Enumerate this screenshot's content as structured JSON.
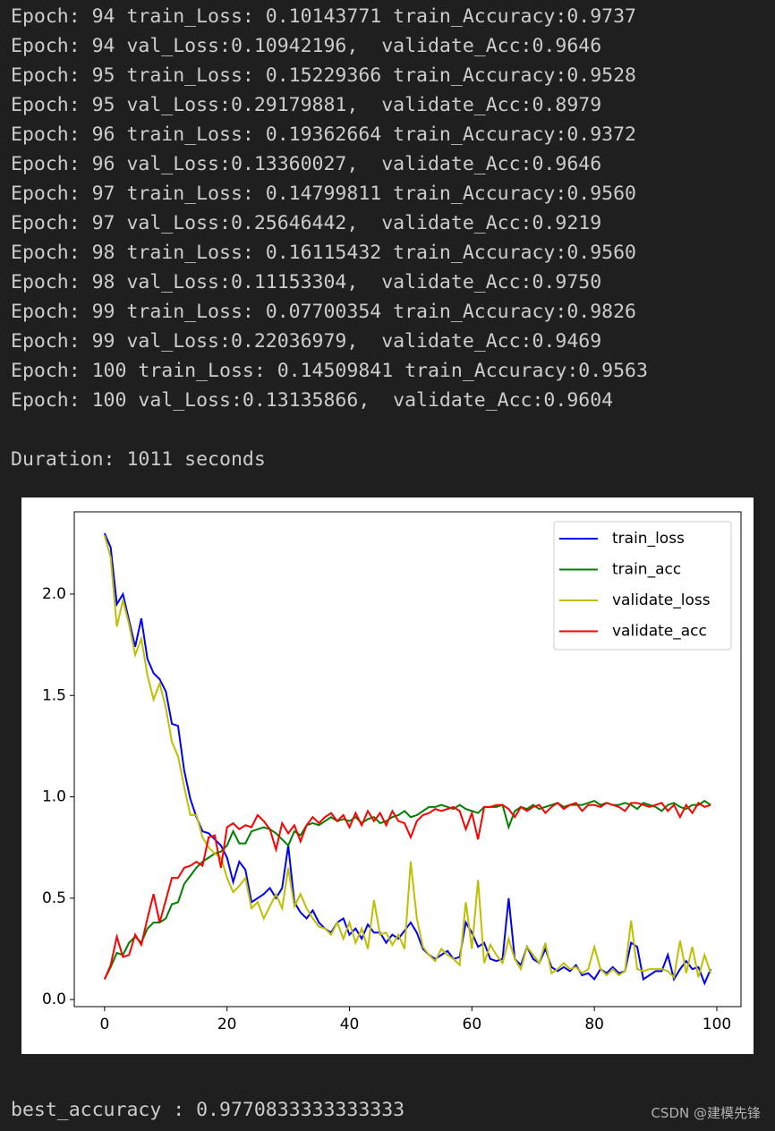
{
  "log_lines": [
    "Epoch: 94 train_Loss: 0.10143771 train_Accuracy:0.9737",
    "Epoch: 94 val_Loss:0.10942196,  validate_Acc:0.9646",
    "Epoch: 95 train_Loss: 0.15229366 train_Accuracy:0.9528",
    "Epoch: 95 val_Loss:0.29179881,  validate_Acc:0.8979",
    "Epoch: 96 train_Loss: 0.19362664 train_Accuracy:0.9372",
    "Epoch: 96 val_Loss:0.13360027,  validate_Acc:0.9646",
    "Epoch: 97 train_Loss: 0.14799811 train_Accuracy:0.9560",
    "Epoch: 97 val_Loss:0.25646442,  validate_Acc:0.9219",
    "Epoch: 98 train_Loss: 0.16115432 train_Accuracy:0.9560",
    "Epoch: 98 val_Loss:0.11153304,  validate_Acc:0.9750",
    "Epoch: 99 train_Loss: 0.07700354 train_Accuracy:0.9826",
    "Epoch: 99 val_Loss:0.22036979,  validate_Acc:0.9469",
    "Epoch: 100 train_Loss: 0.14509841 train_Accuracy:0.9563",
    "Epoch: 100 val_Loss:0.13135866,  validate_Acc:0.9604"
  ],
  "duration": "Duration: 1011 seconds",
  "chart_data": {
    "type": "line",
    "x": [
      0,
      1,
      2,
      3,
      4,
      5,
      6,
      7,
      8,
      9,
      10,
      11,
      12,
      13,
      14,
      15,
      16,
      17,
      18,
      19,
      20,
      21,
      22,
      23,
      24,
      25,
      26,
      27,
      28,
      29,
      30,
      31,
      32,
      33,
      34,
      35,
      36,
      37,
      38,
      39,
      40,
      41,
      42,
      43,
      44,
      45,
      46,
      47,
      48,
      49,
      50,
      51,
      52,
      53,
      54,
      55,
      56,
      57,
      58,
      59,
      60,
      61,
      62,
      63,
      64,
      65,
      66,
      67,
      68,
      69,
      70,
      71,
      72,
      73,
      74,
      75,
      76,
      77,
      78,
      79,
      80,
      81,
      82,
      83,
      84,
      85,
      86,
      87,
      88,
      89,
      90,
      91,
      92,
      93,
      94,
      95,
      96,
      97,
      98,
      99
    ],
    "series": [
      {
        "name": "train_loss",
        "color": "#0000ff",
        "values": [
          2.3,
          2.23,
          1.95,
          2.0,
          1.87,
          1.74,
          1.88,
          1.68,
          1.61,
          1.58,
          1.52,
          1.36,
          1.35,
          1.13,
          0.99,
          0.9,
          0.83,
          0.82,
          0.79,
          0.76,
          0.7,
          0.58,
          0.68,
          0.64,
          0.48,
          0.5,
          0.52,
          0.55,
          0.5,
          0.55,
          0.76,
          0.48,
          0.43,
          0.4,
          0.44,
          0.38,
          0.35,
          0.33,
          0.38,
          0.4,
          0.32,
          0.35,
          0.3,
          0.37,
          0.33,
          0.33,
          0.28,
          0.32,
          0.3,
          0.34,
          0.38,
          0.33,
          0.25,
          0.22,
          0.2,
          0.22,
          0.24,
          0.2,
          0.21,
          0.38,
          0.33,
          0.26,
          0.28,
          0.2,
          0.19,
          0.2,
          0.5,
          0.2,
          0.17,
          0.26,
          0.2,
          0.18,
          0.25,
          0.16,
          0.14,
          0.16,
          0.14,
          0.17,
          0.12,
          0.13,
          0.1,
          0.15,
          0.13,
          0.16,
          0.13,
          0.14,
          0.28,
          0.26,
          0.1,
          0.12,
          0.14,
          0.14,
          0.22,
          0.1,
          0.15,
          0.19,
          0.15,
          0.16,
          0.08,
          0.15
        ]
      },
      {
        "name": "train_acc",
        "color": "#008000",
        "values": [
          0.1,
          0.16,
          0.23,
          0.22,
          0.28,
          0.31,
          0.28,
          0.35,
          0.38,
          0.38,
          0.4,
          0.47,
          0.48,
          0.57,
          0.61,
          0.65,
          0.68,
          0.7,
          0.72,
          0.73,
          0.76,
          0.83,
          0.77,
          0.77,
          0.83,
          0.84,
          0.85,
          0.84,
          0.82,
          0.79,
          0.76,
          0.83,
          0.81,
          0.86,
          0.87,
          0.86,
          0.88,
          0.9,
          0.88,
          0.89,
          0.88,
          0.9,
          0.87,
          0.89,
          0.9,
          0.87,
          0.88,
          0.9,
          0.91,
          0.93,
          0.9,
          0.91,
          0.93,
          0.95,
          0.95,
          0.96,
          0.95,
          0.94,
          0.96,
          0.94,
          0.93,
          0.92,
          0.95,
          0.95,
          0.95,
          0.96,
          0.85,
          0.93,
          0.95,
          0.94,
          0.96,
          0.94,
          0.95,
          0.96,
          0.97,
          0.95,
          0.96,
          0.96,
          0.96,
          0.97,
          0.98,
          0.96,
          0.97,
          0.96,
          0.96,
          0.97,
          0.96,
          0.94,
          0.97,
          0.96,
          0.95,
          0.93,
          0.96,
          0.97,
          0.95,
          0.94,
          0.96,
          0.96,
          0.98,
          0.96
        ]
      },
      {
        "name": "validate_loss",
        "color": "#bfbf00",
        "values": [
          2.29,
          2.18,
          1.84,
          1.97,
          1.85,
          1.7,
          1.78,
          1.6,
          1.48,
          1.56,
          1.44,
          1.27,
          1.2,
          1.05,
          0.91,
          0.91,
          0.8,
          0.75,
          0.72,
          0.7,
          0.6,
          0.53,
          0.56,
          0.6,
          0.45,
          0.48,
          0.4,
          0.46,
          0.52,
          0.45,
          0.65,
          0.46,
          0.52,
          0.45,
          0.4,
          0.36,
          0.35,
          0.32,
          0.38,
          0.3,
          0.38,
          0.28,
          0.35,
          0.25,
          0.49,
          0.32,
          0.33,
          0.27,
          0.32,
          0.25,
          0.68,
          0.4,
          0.26,
          0.22,
          0.19,
          0.25,
          0.22,
          0.2,
          0.17,
          0.48,
          0.25,
          0.59,
          0.18,
          0.27,
          0.22,
          0.18,
          0.3,
          0.2,
          0.15,
          0.26,
          0.22,
          0.18,
          0.28,
          0.13,
          0.15,
          0.18,
          0.15,
          0.16,
          0.13,
          0.15,
          0.26,
          0.15,
          0.12,
          0.15,
          0.12,
          0.14,
          0.39,
          0.15,
          0.14,
          0.15,
          0.15,
          0.15,
          0.14,
          0.11,
          0.29,
          0.13,
          0.26,
          0.11,
          0.22,
          0.13
        ]
      },
      {
        "name": "validate_acc",
        "color": "#ff0000",
        "values": [
          0.1,
          0.17,
          0.31,
          0.21,
          0.22,
          0.32,
          0.27,
          0.4,
          0.52,
          0.38,
          0.49,
          0.6,
          0.6,
          0.65,
          0.66,
          0.68,
          0.66,
          0.8,
          0.81,
          0.65,
          0.85,
          0.87,
          0.84,
          0.86,
          0.85,
          0.91,
          0.88,
          0.84,
          0.74,
          0.87,
          0.82,
          0.86,
          0.78,
          0.86,
          0.9,
          0.87,
          0.9,
          0.92,
          0.88,
          0.91,
          0.85,
          0.92,
          0.86,
          0.93,
          0.88,
          0.92,
          0.86,
          0.93,
          0.88,
          0.87,
          0.8,
          0.88,
          0.91,
          0.92,
          0.94,
          0.93,
          0.94,
          0.95,
          0.93,
          0.84,
          0.92,
          0.79,
          0.95,
          0.95,
          0.96,
          0.96,
          0.94,
          0.9,
          0.95,
          0.93,
          0.95,
          0.96,
          0.92,
          0.95,
          0.97,
          0.94,
          0.96,
          0.97,
          0.93,
          0.96,
          0.96,
          0.95,
          0.97,
          0.96,
          0.95,
          0.93,
          0.97,
          0.97,
          0.96,
          0.95,
          0.96,
          0.97,
          0.93,
          0.96,
          0.9,
          0.96,
          0.92,
          0.97,
          0.95,
          0.96
        ]
      }
    ],
    "xlim": [
      -4.95,
      103.95
    ],
    "xticks": [
      0,
      20,
      40,
      60,
      80,
      100
    ],
    "ylim": [
      -0.035,
      2.406
    ],
    "yticks": [
      {
        "value": 0,
        "label": "0.0"
      },
      0.5,
      {
        "value": 1,
        "label": "1.0"
      },
      1.5,
      {
        "value": 2,
        "label": "2.0"
      }
    ],
    "legend": "upper right"
  },
  "best": "best_accuracy : 0.9770833333333333",
  "watermark": "CSDN @建模先锋"
}
